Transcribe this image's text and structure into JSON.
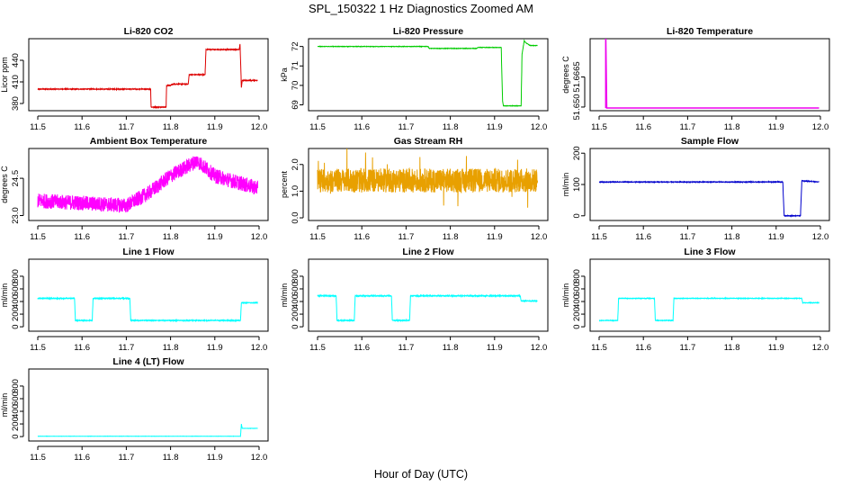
{
  "figure": {
    "title": "SPL_150322  1 Hz Diagnostics Zoomed AM",
    "xlabel": "Hour of Day (UTC)"
  },
  "chart_data": [
    {
      "id": "co2",
      "type": "line",
      "title": "Li-820 CO2",
      "ylabel": "Licor ppm",
      "color": "#dd0000",
      "xlim": [
        11.5,
        12.0
      ],
      "xticks": [
        11.5,
        11.6,
        11.7,
        11.8,
        11.9,
        12.0
      ],
      "x_tick_labels": [
        "11.5",
        "11.6",
        "11.7",
        "11.8",
        "11.9",
        "12.0"
      ],
      "ylim": [
        370,
        470
      ],
      "yticks": [
        380,
        410,
        440
      ],
      "y_tick_labels": [
        "380",
        "410",
        "440"
      ],
      "x": [
        11.5,
        11.755,
        11.756,
        11.79,
        11.791,
        11.8,
        11.805,
        11.84,
        11.842,
        11.878,
        11.88,
        11.955,
        11.957,
        11.96,
        11.962,
        11.997
      ],
      "y": [
        400,
        400,
        375,
        375,
        405,
        405,
        407,
        407,
        420,
        420,
        455,
        455,
        463,
        402,
        412,
        412
      ],
      "noise": 1.0
    },
    {
      "id": "pressure",
      "type": "line",
      "title": "Li-820 Pressure",
      "ylabel": "kPa",
      "color": "#00cc00",
      "xlim": [
        11.5,
        12.0
      ],
      "xticks": [
        11.5,
        11.6,
        11.7,
        11.8,
        11.9,
        12.0
      ],
      "x_tick_labels": [
        "11.5",
        "11.6",
        "11.7",
        "11.8",
        "11.9",
        "12.0"
      ],
      "ylim": [
        68.7,
        72.4
      ],
      "yticks": [
        69,
        70,
        71,
        72
      ],
      "y_tick_labels": [
        "69",
        "70",
        "71",
        "72"
      ],
      "x": [
        11.5,
        11.75,
        11.752,
        11.86,
        11.862,
        11.915,
        11.918,
        11.92,
        11.96,
        11.962,
        11.967,
        11.97,
        11.98,
        11.997
      ],
      "y": [
        72.0,
        72.0,
        71.9,
        71.9,
        71.95,
        71.95,
        69.2,
        68.95,
        68.95,
        71.6,
        72.3,
        72.2,
        72.05,
        72.05
      ],
      "noise": 0.02
    },
    {
      "id": "licor-temp",
      "type": "line",
      "title": "Li-820 Temperature",
      "ylabel": "degrees C",
      "color": "#ee00ee",
      "xlim": [
        11.5,
        12.0
      ],
      "xticks": [
        11.5,
        11.6,
        11.7,
        11.8,
        11.9,
        12.0
      ],
      "x_tick_labels": [
        "11.5",
        "11.6",
        "11.7",
        "11.8",
        "11.9",
        "12.0"
      ],
      "ylim": [
        51.648,
        51.6875
      ],
      "yticks": [
        51.65,
        51.6665
      ],
      "y_tick_labels": [
        "51.650",
        "51.6665"
      ],
      "x": [
        11.515,
        11.515,
        11.517,
        11.997
      ],
      "y": [
        51.6495,
        51.6875,
        51.6495,
        51.6495
      ],
      "noise": 0
    },
    {
      "id": "box-temp",
      "type": "line",
      "title": "Ambient Box Temperature",
      "ylabel": "degrees C",
      "color": "#ff00ff",
      "xlim": [
        11.5,
        12.0
      ],
      "xticks": [
        11.5,
        11.6,
        11.7,
        11.8,
        11.9,
        12.0
      ],
      "x_tick_labels": [
        "11.5",
        "11.6",
        "11.7",
        "11.8",
        "11.9",
        "12.0"
      ],
      "ylim": [
        22.8,
        25.7
      ],
      "yticks": [
        23.0,
        24.5
      ],
      "y_tick_labels": [
        "23.0",
        "24.5"
      ],
      "x": [
        11.5,
        11.7,
        11.75,
        11.8,
        11.86,
        11.9,
        11.997
      ],
      "y": [
        23.6,
        23.4,
        23.9,
        24.6,
        25.2,
        24.6,
        24.1
      ],
      "noise": 0.6
    },
    {
      "id": "gas-rh",
      "type": "line",
      "title": "Gas Stream RH",
      "ylabel": "percent",
      "color": "#e8a000",
      "xlim": [
        11.5,
        12.0
      ],
      "xticks": [
        11.5,
        11.6,
        11.7,
        11.8,
        11.9,
        12.0
      ],
      "x_tick_labels": [
        "11.5",
        "11.6",
        "11.7",
        "11.8",
        "11.9",
        "12.0"
      ],
      "ylim": [
        -0.1,
        2.6
      ],
      "yticks": [
        0.0,
        1.0,
        2.0
      ],
      "y_tick_labels": [
        "0.0",
        "1.0",
        "2.0"
      ],
      "x": [
        11.5,
        11.997
      ],
      "y": [
        1.4,
        1.4
      ],
      "noise": 0.9
    },
    {
      "id": "sample-flow",
      "type": "line",
      "title": "Sample Flow",
      "ylabel": "ml/min",
      "color": "#0000cc",
      "xlim": [
        11.5,
        12.0
      ],
      "xticks": [
        11.5,
        11.6,
        11.7,
        11.8,
        11.9,
        12.0
      ],
      "x_tick_labels": [
        "11.5",
        "11.6",
        "11.7",
        "11.8",
        "11.9",
        "12.0"
      ],
      "ylim": [
        -15,
        215
      ],
      "yticks": [
        0,
        100,
        200
      ],
      "y_tick_labels": [
        "0",
        "100",
        "200"
      ],
      "x": [
        11.5,
        11.915,
        11.918,
        11.955,
        11.958,
        11.997
      ],
      "y": [
        108,
        108,
        0,
        0,
        112,
        108
      ],
      "noise": 2
    },
    {
      "id": "line1-flow",
      "type": "line",
      "title": "Line 1 Flow",
      "ylabel": "ml/min",
      "color": "#00ffff",
      "xlim": [
        11.5,
        12.0
      ],
      "xticks": [
        11.5,
        11.6,
        11.7,
        11.8,
        11.9,
        12.0
      ],
      "x_tick_labels": [
        "11.5",
        "11.6",
        "11.7",
        "11.8",
        "11.9",
        "12.0"
      ],
      "ylim": [
        -70,
        1070
      ],
      "yticks": [
        0,
        200,
        400,
        600,
        800
      ],
      "y_tick_labels": [
        "0",
        "200",
        "400",
        "600",
        "800"
      ],
      "x": [
        11.5,
        11.583,
        11.585,
        11.623,
        11.625,
        11.708,
        11.71,
        11.958,
        11.96,
        11.997
      ],
      "y": [
        450,
        450,
        100,
        100,
        450,
        450,
        100,
        100,
        380,
        380
      ],
      "noise": 12
    },
    {
      "id": "line2-flow",
      "type": "line",
      "title": "Line 2 Flow",
      "ylabel": "ml/min",
      "color": "#00ffff",
      "xlim": [
        11.5,
        12.0
      ],
      "xticks": [
        11.5,
        11.6,
        11.7,
        11.8,
        11.9,
        12.0
      ],
      "x_tick_labels": [
        "11.5",
        "11.6",
        "11.7",
        "11.8",
        "11.9",
        "12.0"
      ],
      "ylim": [
        -70,
        1070
      ],
      "yticks": [
        0,
        200,
        400,
        600,
        800
      ],
      "y_tick_labels": [
        "0",
        "200",
        "400",
        "600",
        "800"
      ],
      "x": [
        11.5,
        11.542,
        11.544,
        11.583,
        11.585,
        11.667,
        11.669,
        11.708,
        11.71,
        11.958,
        11.96,
        11.997
      ],
      "y": [
        490,
        490,
        100,
        100,
        490,
        490,
        100,
        100,
        490,
        490,
        410,
        410
      ],
      "noise": 14
    },
    {
      "id": "line3-flow",
      "type": "line",
      "title": "Line 3 Flow",
      "ylabel": "ml/min",
      "color": "#00ffff",
      "xlim": [
        11.5,
        12.0
      ],
      "xticks": [
        11.5,
        11.6,
        11.7,
        11.8,
        11.9,
        12.0
      ],
      "x_tick_labels": [
        "11.5",
        "11.6",
        "11.7",
        "11.8",
        "11.9",
        "12.0"
      ],
      "ylim": [
        -70,
        1070
      ],
      "yticks": [
        0,
        200,
        400,
        600,
        800
      ],
      "y_tick_labels": [
        "0",
        "200",
        "400",
        "600",
        "800"
      ],
      "x": [
        11.5,
        11.542,
        11.544,
        11.625,
        11.627,
        11.667,
        11.669,
        11.958,
        11.96,
        11.997
      ],
      "y": [
        100,
        100,
        450,
        450,
        100,
        100,
        450,
        450,
        380,
        380
      ],
      "noise": 8
    },
    {
      "id": "line4-flow",
      "type": "line",
      "title": "Line 4 (LT) Flow",
      "ylabel": "ml/min",
      "color": "#00ffff",
      "xlim": [
        11.5,
        12.0
      ],
      "xticks": [
        11.5,
        11.6,
        11.7,
        11.8,
        11.9,
        12.0
      ],
      "x_tick_labels": [
        "11.5",
        "11.6",
        "11.7",
        "11.8",
        "11.9",
        "12.0"
      ],
      "ylim": [
        -70,
        1070
      ],
      "yticks": [
        0,
        200,
        400,
        600,
        800
      ],
      "y_tick_labels": [
        "0",
        "200",
        "400",
        "600",
        "800"
      ],
      "x": [
        11.5,
        11.958,
        11.96,
        11.962,
        11.997
      ],
      "y": [
        5,
        5,
        200,
        130,
        130
      ],
      "noise": 3
    }
  ]
}
